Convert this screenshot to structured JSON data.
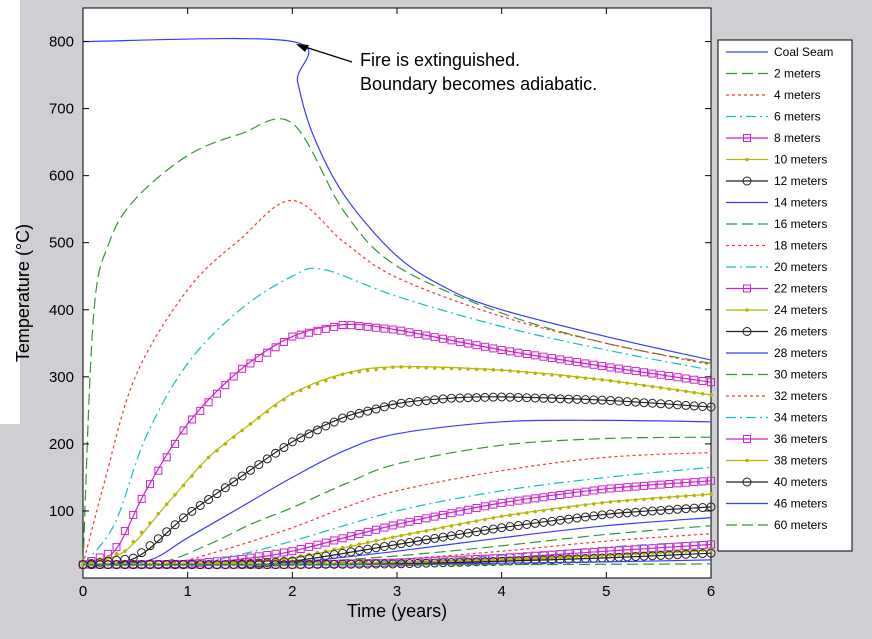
{
  "chart_data": {
    "type": "line",
    "xlabel": "Time (years)",
    "ylabel": "Temperature (°C)",
    "xlim": [
      0,
      6
    ],
    "ylim": [
      0,
      850
    ],
    "xticks": [
      "0",
      "1",
      "2",
      "3",
      "4",
      "5",
      "6"
    ],
    "yticks": [
      "100",
      "200",
      "300",
      "400",
      "500",
      "600",
      "700",
      "800"
    ],
    "annotation": {
      "line1": "Fire is extinguished.",
      "line2": "Boundary becomes adiabatic.",
      "x": 2,
      "y": 800
    },
    "legend_position": "right-outside",
    "series": [
      {
        "name": "Coal Seam",
        "color": "#3b3bff",
        "style": "solid",
        "marker": "none",
        "x": [
          0,
          2,
          2.05,
          2.2,
          2.5,
          3,
          3.5,
          4,
          5,
          6
        ],
        "y": [
          800,
          800,
          740,
          660,
          570,
          480,
          430,
          400,
          360,
          325
        ]
      },
      {
        "name": "2 meters",
        "color": "#2e9a2e",
        "style": "dash",
        "marker": "none",
        "x": [
          0,
          0.1,
          0.25,
          0.5,
          1,
          1.5,
          2,
          2.5,
          3,
          4,
          5,
          6
        ],
        "y": [
          20,
          390,
          500,
          565,
          630,
          662,
          678,
          545,
          465,
          395,
          350,
          320
        ]
      },
      {
        "name": "4 meters",
        "color": "#ff3333",
        "style": "dot",
        "marker": "none",
        "x": [
          0,
          0.2,
          0.5,
          1,
          1.5,
          2,
          2.5,
          3,
          4,
          5,
          6
        ],
        "y": [
          20,
          140,
          300,
          430,
          505,
          563,
          500,
          448,
          390,
          350,
          318
        ]
      },
      {
        "name": "6 meters",
        "color": "#10c0c0",
        "style": "dashdot",
        "marker": "none",
        "x": [
          0,
          0.3,
          0.6,
          1,
          1.5,
          2,
          2.3,
          3,
          4,
          5,
          6
        ],
        "y": [
          20,
          80,
          210,
          320,
          400,
          450,
          460,
          420,
          375,
          340,
          310
        ]
      },
      {
        "name": "8 meters",
        "color": "#cc22cc",
        "style": "solid",
        "marker": "square",
        "x": [
          0,
          0.3,
          0.6,
          1,
          1.5,
          2,
          2.5,
          3,
          4,
          5,
          6
        ],
        "y": [
          20,
          40,
          130,
          230,
          310,
          360,
          378,
          370,
          340,
          315,
          292
        ]
      },
      {
        "name": "10 meters",
        "color": "#b5b800",
        "style": "solid",
        "marker": "dot",
        "x": [
          0,
          0.4,
          0.8,
          1.2,
          1.6,
          2,
          2.5,
          3,
          4,
          5,
          6
        ],
        "y": [
          20,
          40,
          110,
          180,
          230,
          275,
          305,
          315,
          310,
          295,
          273
        ]
      },
      {
        "name": "12 meters",
        "color": "#222222",
        "style": "solid",
        "marker": "circle",
        "x": [
          0,
          0.5,
          1,
          1.5,
          2,
          2.5,
          3,
          3.5,
          4,
          5,
          6
        ],
        "y": [
          20,
          30,
          95,
          150,
          203,
          240,
          260,
          268,
          270,
          265,
          255
        ]
      },
      {
        "name": "14 meters",
        "color": "#3b3bff",
        "style": "solid",
        "marker": "none",
        "x": [
          0,
          0.6,
          1,
          1.5,
          2,
          2.5,
          3,
          4,
          5,
          6
        ],
        "y": [
          20,
          25,
          60,
          105,
          150,
          190,
          215,
          233,
          235,
          233
        ]
      },
      {
        "name": "16 meters",
        "color": "#2e9a2e",
        "style": "dash",
        "marker": "none",
        "x": [
          0,
          0.7,
          1.2,
          1.6,
          2,
          2.5,
          3,
          4,
          5,
          6
        ],
        "y": [
          20,
          22,
          50,
          80,
          105,
          140,
          170,
          198,
          208,
          210
        ]
      },
      {
        "name": "18 meters",
        "color": "#ff3333",
        "style": "dot",
        "marker": "none",
        "x": [
          0,
          0.8,
          1.3,
          2,
          2.5,
          3,
          4,
          5,
          6
        ],
        "y": [
          20,
          22,
          40,
          75,
          105,
          130,
          160,
          180,
          187
        ]
      },
      {
        "name": "20 meters",
        "color": "#10c0c0",
        "style": "dashdot",
        "marker": "none",
        "x": [
          0,
          1,
          1.5,
          2,
          3,
          4,
          5,
          6
        ],
        "y": [
          20,
          22,
          35,
          55,
          100,
          130,
          150,
          165
        ]
      },
      {
        "name": "22 meters",
        "color": "#cc22cc",
        "style": "solid",
        "marker": "square",
        "x": [
          0,
          1,
          1.5,
          2,
          3,
          4,
          5,
          6
        ],
        "y": [
          20,
          21,
          28,
          40,
          80,
          112,
          133,
          145
        ]
      },
      {
        "name": "24 meters",
        "color": "#b5b800",
        "style": "solid",
        "marker": "dot",
        "x": [
          0,
          1.2,
          2,
          3,
          4,
          5,
          6
        ],
        "y": [
          20,
          21,
          30,
          62,
          92,
          113,
          125
        ]
      },
      {
        "name": "26 meters",
        "color": "#222222",
        "style": "solid",
        "marker": "circle",
        "x": [
          0,
          1.4,
          2,
          3,
          4,
          5,
          6
        ],
        "y": [
          20,
          20,
          25,
          50,
          75,
          95,
          106
        ]
      },
      {
        "name": "28 meters",
        "color": "#3b3bff",
        "style": "solid",
        "marker": "none",
        "x": [
          0,
          1.5,
          2,
          3,
          4,
          5,
          6
        ],
        "y": [
          20,
          20,
          23,
          40,
          60,
          78,
          90
        ]
      },
      {
        "name": "30 meters",
        "color": "#2e9a2e",
        "style": "dash",
        "marker": "none",
        "x": [
          0,
          1.6,
          2,
          3,
          4,
          5,
          6
        ],
        "y": [
          20,
          20,
          22,
          33,
          48,
          65,
          78
        ]
      },
      {
        "name": "32 meters",
        "color": "#ff3333",
        "style": "dot",
        "marker": "none",
        "x": [
          0,
          1.7,
          2,
          3,
          4,
          5,
          6
        ],
        "y": [
          20,
          20,
          21,
          28,
          40,
          55,
          66
        ]
      },
      {
        "name": "34 meters",
        "color": "#10c0c0",
        "style": "dashdot",
        "marker": "none",
        "x": [
          0,
          1.8,
          2,
          3,
          4,
          5,
          6
        ],
        "y": [
          20,
          20,
          21,
          25,
          34,
          46,
          55
        ]
      },
      {
        "name": "36 meters",
        "color": "#cc22cc",
        "style": "solid",
        "marker": "square",
        "x": [
          0,
          2,
          3,
          4,
          5,
          6
        ],
        "y": [
          20,
          20,
          23,
          30,
          40,
          50
        ]
      },
      {
        "name": "38 meters",
        "color": "#b5b800",
        "style": "solid",
        "marker": "dot",
        "x": [
          0,
          2,
          3,
          4,
          5,
          6
        ],
        "y": [
          20,
          20,
          22,
          27,
          34,
          42
        ]
      },
      {
        "name": "40 meters",
        "color": "#222222",
        "style": "solid",
        "marker": "circle",
        "x": [
          0,
          2,
          3,
          4,
          5,
          6
        ],
        "y": [
          20,
          20,
          21,
          25,
          30,
          37
        ]
      },
      {
        "name": "46 meters",
        "color": "#3b3bff",
        "style": "solid",
        "marker": "none",
        "x": [
          0,
          2,
          3,
          4,
          5,
          6
        ],
        "y": [
          20,
          20,
          20,
          22,
          24,
          27
        ]
      },
      {
        "name": "60 meters",
        "color": "#2e9a2e",
        "style": "dash",
        "marker": "none",
        "x": [
          0,
          2,
          4,
          6
        ],
        "y": [
          20,
          20,
          20,
          21
        ]
      }
    ]
  }
}
